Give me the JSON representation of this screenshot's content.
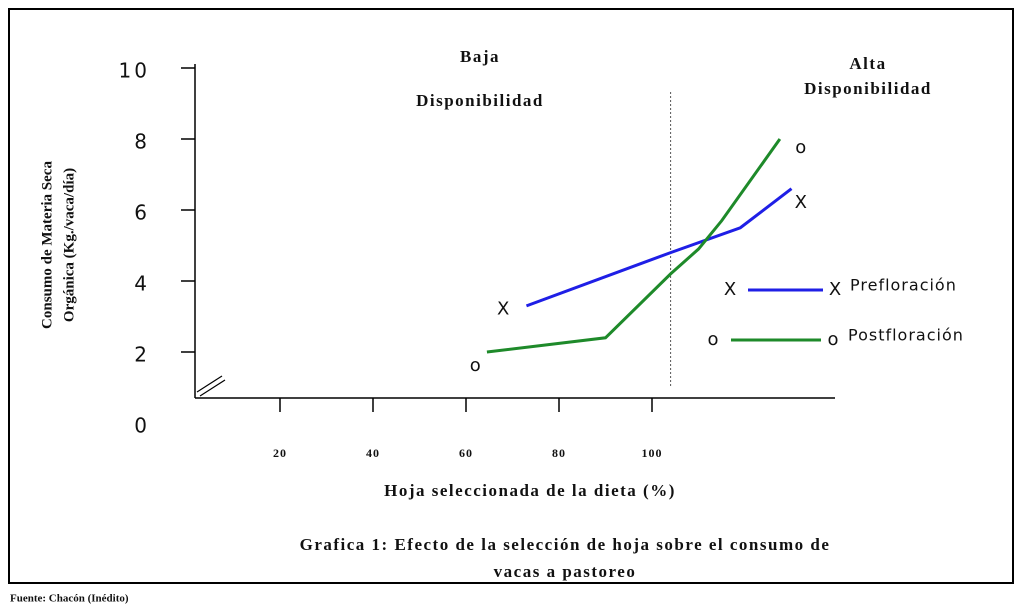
{
  "chart_data": {
    "type": "line",
    "title": "Grafica  1: Efecto de la selección de hoja sobre el consumo de",
    "subtitle": "vacas a pastoreo",
    "source": "Fuente: Chacón (Inédito)",
    "x_label": "Hoja seleccionada de la dieta (%)",
    "y_label": [
      "Consumo de Materia Seca",
      "Orgánica  (Kg./vaca/día)"
    ],
    "xlim": [
      0,
      140
    ],
    "xticks": [
      20,
      40,
      60,
      80,
      100
    ],
    "ylim": [
      0,
      10
    ],
    "yticks": [
      0,
      2,
      4,
      6,
      8,
      10
    ],
    "reference_line_x": 104,
    "regions": [
      {
        "lines": [
          "Baja",
          "Disponibilidad"
        ]
      },
      {
        "lines": [
          "Alta",
          "Disponibilidad"
        ]
      }
    ],
    "series": [
      {
        "name": "Prefloración",
        "color": "#1f1fe6",
        "marker": "X",
        "x": [
          73,
          104,
          119,
          130
        ],
        "values": [
          3.3,
          4.8,
          5.5,
          6.6
        ],
        "points": {
          "x": [
            68,
            132
          ],
          "y": [
            3.2,
            6.2
          ]
        }
      },
      {
        "name": "Postfloración",
        "color": "#1e8a2a",
        "marker": "o",
        "x": [
          64.5,
          90,
          104,
          110,
          115,
          127.5
        ],
        "values": [
          2.0,
          2.4,
          4.2,
          4.9,
          5.7,
          8.0
        ],
        "points": {
          "x": [
            62,
            132
          ],
          "y": [
            1.6,
            7.75
          ]
        }
      }
    ]
  }
}
